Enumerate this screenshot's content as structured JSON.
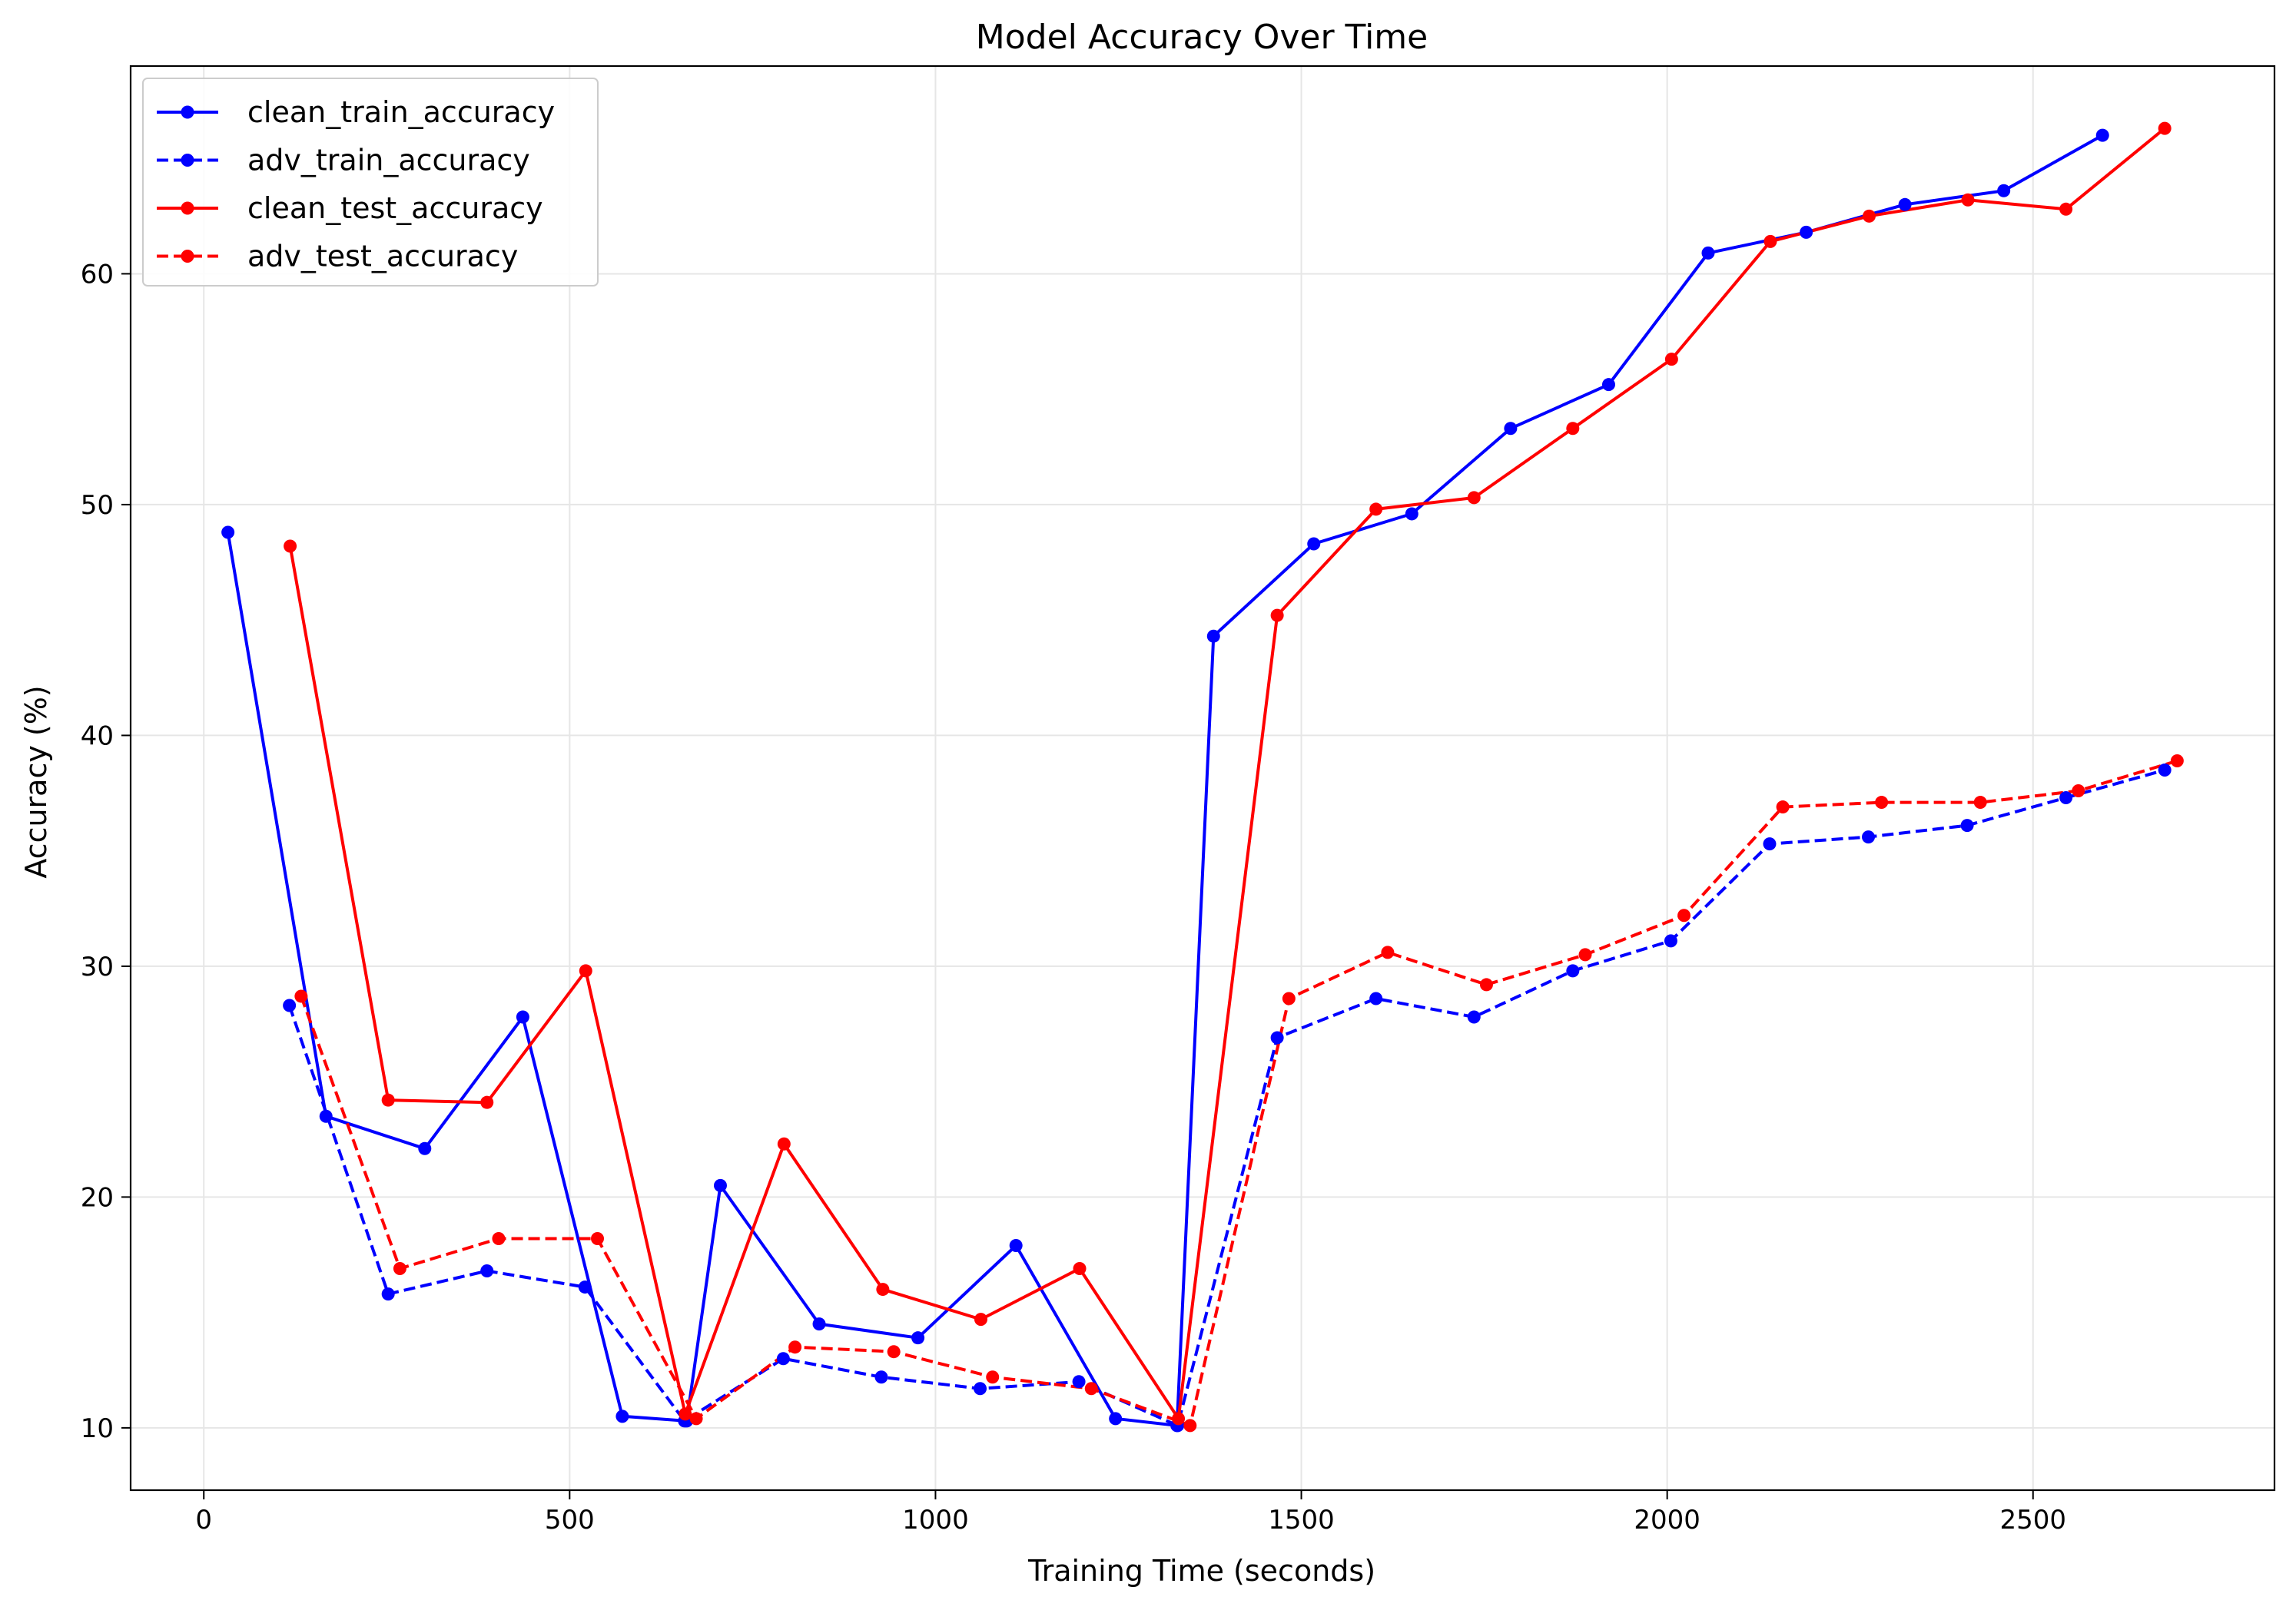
{
  "chart_data": {
    "type": "line",
    "title": "Model Accuracy Over Time",
    "xlabel": "Training Time (seconds)",
    "ylabel": "Accuracy (%)",
    "xlim": [
      -100,
      2830
    ],
    "ylim": [
      7.3,
      69
    ],
    "xticks": [
      0,
      500,
      1000,
      1500,
      2000,
      2500
    ],
    "yticks": [
      10,
      20,
      30,
      40,
      50,
      60
    ],
    "grid": true,
    "legend": "upper-left",
    "series": [
      {
        "name": "clean_train_accuracy",
        "color": "#0000ff",
        "dash": "solid",
        "x": [
          33,
          167,
          302,
          436,
          572,
          660,
          706,
          841,
          976,
          1110,
          1246,
          1330,
          1380,
          1517,
          1651,
          1786,
          1920,
          2056,
          2190,
          2325,
          2460,
          2595
        ],
        "y": [
          48.8,
          23.5,
          22.1,
          27.8,
          10.5,
          10.3,
          20.5,
          14.5,
          13.9,
          17.9,
          10.4,
          10.1,
          44.3,
          48.3,
          49.6,
          53.3,
          55.2,
          60.9,
          61.8,
          63.0,
          63.6,
          66.0
        ]
      },
      {
        "name": "adv_train_accuracy",
        "color": "#0000ff",
        "dash": "dashed",
        "x": [
          117,
          252,
          387,
          521,
          657,
          792,
          926,
          1061,
          1196,
          1331,
          1467,
          1602,
          1736,
          1871,
          2005,
          2140,
          2275,
          2410,
          2545,
          2680
        ],
        "y": [
          28.3,
          15.8,
          16.8,
          16.1,
          10.3,
          13.0,
          12.2,
          11.7,
          12.0,
          10.1,
          26.9,
          28.6,
          27.8,
          29.8,
          31.1,
          35.3,
          35.6,
          36.1,
          37.3,
          38.5
        ]
      },
      {
        "name": "clean_test_accuracy",
        "color": "#ff0000",
        "dash": "solid",
        "x": [
          118,
          252,
          387,
          522,
          658,
          793,
          928,
          1062,
          1197,
          1332,
          1467,
          1602,
          1736,
          1871,
          2006,
          2141,
          2276,
          2411,
          2545,
          2680
        ],
        "y": [
          48.2,
          24.2,
          24.1,
          29.8,
          10.6,
          22.3,
          16.0,
          14.7,
          16.9,
          10.4,
          45.2,
          49.8,
          50.3,
          53.3,
          56.3,
          61.4,
          62.5,
          63.2,
          62.8,
          66.3
        ]
      },
      {
        "name": "adv_test_accuracy",
        "color": "#ff0000",
        "dash": "dashed",
        "x": [
          133,
          268,
          403,
          538,
          673,
          808,
          943,
          1078,
          1213,
          1348,
          1483,
          1618,
          1753,
          1888,
          2023,
          2158,
          2293,
          2428,
          2562,
          2697
        ],
        "y": [
          28.7,
          16.9,
          18.2,
          18.2,
          10.4,
          13.5,
          13.3,
          12.2,
          11.7,
          10.1,
          28.6,
          30.6,
          29.2,
          30.5,
          32.2,
          36.9,
          37.1,
          37.1,
          37.6,
          38.9
        ]
      }
    ]
  }
}
